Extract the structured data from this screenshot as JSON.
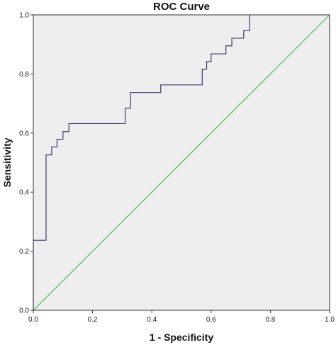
{
  "chart_data": {
    "type": "line",
    "title": "ROC Curve",
    "xlabel": "1 - Specificity",
    "ylabel": "Sensitivity",
    "xlim": [
      0.0,
      1.0
    ],
    "ylim": [
      0.0,
      1.0
    ],
    "x_ticks": [
      "0.0",
      "0.2",
      "0.4",
      "0.6",
      "0.8",
      "1.0"
    ],
    "y_ticks": [
      "0.0",
      "0.2",
      "0.4",
      "0.6",
      "0.8",
      "1.0"
    ],
    "grid": false,
    "background": "#eeeeee",
    "series": [
      {
        "color": "#3a3a78",
        "step": true,
        "points": [
          [
            0.0,
            0.0
          ],
          [
            0.0,
            0.237
          ],
          [
            0.043,
            0.237
          ],
          [
            0.043,
            0.526
          ],
          [
            0.062,
            0.526
          ],
          [
            0.062,
            0.553
          ],
          [
            0.08,
            0.553
          ],
          [
            0.08,
            0.579
          ],
          [
            0.1,
            0.579
          ],
          [
            0.1,
            0.605
          ],
          [
            0.12,
            0.605
          ],
          [
            0.12,
            0.632
          ],
          [
            0.31,
            0.632
          ],
          [
            0.31,
            0.684
          ],
          [
            0.328,
            0.684
          ],
          [
            0.328,
            0.737
          ],
          [
            0.43,
            0.737
          ],
          [
            0.43,
            0.763
          ],
          [
            0.57,
            0.763
          ],
          [
            0.57,
            0.816
          ],
          [
            0.585,
            0.816
          ],
          [
            0.585,
            0.842
          ],
          [
            0.6,
            0.842
          ],
          [
            0.6,
            0.868
          ],
          [
            0.65,
            0.868
          ],
          [
            0.65,
            0.895
          ],
          [
            0.67,
            0.895
          ],
          [
            0.67,
            0.921
          ],
          [
            0.71,
            0.921
          ],
          [
            0.71,
            0.947
          ],
          [
            0.73,
            0.947
          ],
          [
            0.73,
            1.0
          ]
        ]
      },
      {
        "color": "#44bb44",
        "step": false,
        "points": [
          [
            0.0,
            0.0
          ],
          [
            1.0,
            1.0
          ]
        ]
      }
    ]
  }
}
